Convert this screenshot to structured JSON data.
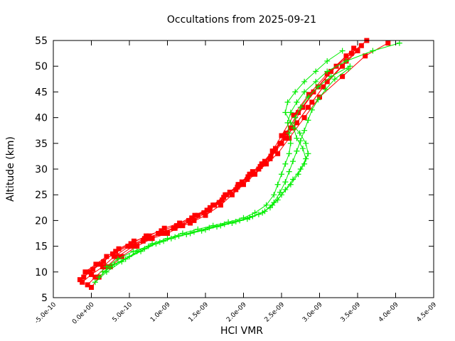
{
  "chart_data": {
    "type": "scatter",
    "title": "Occultations from 2025-09-21",
    "xlabel": "HCl VMR",
    "ylabel": "Altitude (km)",
    "xlim": [
      -5e-10,
      4.5e-09
    ],
    "ylim": [
      5,
      55
    ],
    "xticks": [
      -5e-10,
      0,
      5e-10,
      1e-09,
      1.5e-09,
      2e-09,
      2.5e-09,
      3e-09,
      3.5e-09,
      4e-09,
      4.5e-09
    ],
    "xtick_labels": [
      "-5.0e-10",
      "0.0e+00",
      "5.0e-10",
      "1.0e-09",
      "1.5e-09",
      "2.0e-09",
      "2.5e-09",
      "3.0e-09",
      "3.5e-09",
      "4.0e-09",
      "4.5e-09"
    ],
    "yticks": [
      5,
      10,
      15,
      20,
      25,
      30,
      35,
      40,
      45,
      50,
      55
    ],
    "ytick_labels": [
      "5",
      "10",
      "15",
      "20",
      "25",
      "30",
      "35",
      "40",
      "45",
      "50",
      "55"
    ],
    "grid": false,
    "series": [
      {
        "color": "#ff0000",
        "marker": "square",
        "profiles": [
          {
            "x": [
              -1.2e-10,
              0,
              1.5e-10,
              3e-10,
              5e-10,
              7e-10,
              9e-10,
              1.1e-09,
              1.3e-09,
              1.5e-09,
              1.7e-09,
              1.85e-09,
              2e-09,
              2.15e-09,
              2.3e-09,
              2.45e-09,
              2.6e-09,
              2.8e-09,
              3e-09,
              3.3e-09,
              3.6e-09,
              3.9e-09
            ],
            "y": [
              8,
              9.5,
              11,
              13,
              15,
              16.5,
              17.5,
              18.5,
              19.5,
              21,
              23,
              25,
              27,
              29,
              31,
              33,
              36,
              40,
              44,
              48,
              52,
              54.5
            ]
          },
          {
            "x": [
              -5e-11,
              5e-11,
              2e-10,
              3.5e-10,
              5.5e-10,
              7.5e-10,
              9.5e-10,
              1.15e-09,
              1.35e-09,
              1.55e-09,
              1.72e-09,
              1.9e-09,
              2.05e-09,
              2.2e-09,
              2.35e-09,
              2.5e-09,
              2.65e-09,
              2.85e-09,
              3.05e-09,
              3.3e-09,
              3.5e-09
            ],
            "y": [
              7.5,
              9,
              11,
              13,
              15,
              16.5,
              17.5,
              19,
              20,
              22,
              24,
              26,
              28,
              30,
              32,
              35,
              38,
              42,
              46,
              50,
              53
            ]
          },
          {
            "x": [
              -1e-10,
              2e-11,
              1.6e-10,
              3.2e-10,
              5.2e-10,
              7.2e-10,
              9.2e-10,
              1.12e-09,
              1.32e-09,
              1.52e-09,
              1.68e-09,
              1.82e-09,
              1.98e-09,
              2.12e-09,
              2.28e-09,
              2.42e-09,
              2.56e-09,
              2.72e-09,
              2.92e-09,
              3.15e-09,
              3.42e-09,
              3.62e-09
            ],
            "y": [
              9,
              10.5,
              12,
              14,
              15.5,
              17,
              18,
              19,
              20.5,
              22,
              23.5,
              25.5,
              27.5,
              29.5,
              31.5,
              34,
              37,
              41,
              45,
              49,
              52.5,
              55
            ]
          },
          {
            "x": [
              -1.5e-10,
              -2e-11,
              1.2e-10,
              2.8e-10,
              4.8e-10,
              6.8e-10,
              8.8e-10,
              1.08e-09,
              1.28e-09,
              1.48e-09,
              1.62e-09,
              1.78e-09,
              1.93e-09,
              2.08e-09,
              2.24e-09,
              2.38e-09,
              2.5e-09,
              2.66e-09,
              2.86e-09,
              3.1e-09,
              3.35e-09
            ],
            "y": [
              8.5,
              10,
              11.5,
              13.5,
              15,
              16,
              17.5,
              18.5,
              20,
              21.5,
              23,
              25,
              27,
              29,
              31,
              33.5,
              36.5,
              40.5,
              44.5,
              48.5,
              52
            ]
          },
          {
            "x": [
              0,
              1e-10,
              2.5e-10,
              4e-10,
              6e-10,
              8e-10,
              1e-09,
              1.2e-09,
              1.4e-09,
              1.6e-09,
              1.76e-09,
              1.95e-09,
              2.1e-09,
              2.26e-09,
              2.4e-09,
              2.55e-09,
              2.7e-09,
              2.9e-09,
              3.1e-09,
              3.35e-09,
              3.55e-09
            ],
            "y": [
              7,
              9,
              11,
              13,
              15,
              16.5,
              17.5,
              19,
              21,
              23,
              25,
              27,
              29,
              31,
              33.5,
              36,
              39,
              43,
              47,
              51,
              54
            ]
          },
          {
            "x": [
              -8e-11,
              6e-11,
              2e-10,
              3.6e-10,
              5.6e-10,
              7.6e-10,
              9.6e-10,
              1.16e-09,
              1.36e-09,
              1.56e-09,
              1.74e-09,
              1.92e-09,
              2.06e-09,
              2.22e-09,
              2.36e-09,
              2.48e-09,
              2.62e-09,
              2.78e-09,
              2.98e-09,
              3.22e-09,
              3.45e-09
            ],
            "y": [
              10,
              11.5,
              13,
              14.5,
              16,
              17,
              18.5,
              19.5,
              21,
              22.5,
              24.5,
              26.5,
              28.5,
              30.5,
              32.5,
              35,
              38,
              42,
              46,
              50,
              53.5
            ]
          }
        ]
      },
      {
        "color": "#00ee00",
        "marker": "plus",
        "profiles": [
          {
            "x": [
              5e-11,
              2e-10,
              4e-10,
              6e-10,
              8e-10,
              1e-09,
              1.2e-09,
              1.4e-09,
              1.6e-09,
              1.8e-09,
              2e-09,
              2.15e-09,
              2.3e-09,
              2.4e-09,
              2.45e-09,
              2.5e-09,
              2.55e-09,
              2.6e-09,
              2.62e-09,
              2.6e-09,
              2.58e-09,
              2.62e-09,
              2.7e-09,
              2.8e-09,
              2.95e-09,
              3.1e-09,
              3.35e-09,
              3.7e-09,
              4.05e-09
            ],
            "y": [
              8,
              10,
              12,
              14,
              15.5,
              16.5,
              17.5,
              18.3,
              19,
              19.7,
              20.5,
              21.5,
              23,
              25,
              27,
              29,
              31,
              33,
              35,
              37,
              39,
              41,
              43,
              45,
              47,
              49,
              51,
              53,
              54.5
            ]
          },
          {
            "x": [
              1e-10,
              2.5e-10,
              4.5e-10,
              6.5e-10,
              8.5e-10,
              1.05e-09,
              1.25e-09,
              1.45e-09,
              1.65e-09,
              1.85e-09,
              2.05e-09,
              2.2e-09,
              2.35e-09,
              2.45e-09,
              2.55e-09,
              2.65e-09,
              2.75e-09,
              2.82e-09,
              2.78e-09,
              2.7e-09,
              2.66e-09,
              2.68e-09,
              2.75e-09,
              2.85e-09,
              2.98e-09,
              3.15e-09,
              3.4e-09
            ],
            "y": [
              9,
              11,
              12.5,
              14,
              15.5,
              16.5,
              17.3,
              18,
              18.8,
              19.5,
              20.3,
              21.2,
              22.5,
              24,
              26,
              28,
              30,
              32,
              34,
              36,
              38,
              40,
              42,
              44,
              46,
              48,
              50
            ]
          },
          {
            "x": [
              1.5e-10,
              3e-10,
              5e-10,
              7e-10,
              9e-10,
              1.1e-09,
              1.3e-09,
              1.5e-09,
              1.7e-09,
              1.9e-09,
              2.08e-09,
              2.25e-09,
              2.38e-09,
              2.5e-09,
              2.62e-09,
              2.72e-09,
              2.8e-09,
              2.85e-09,
              2.82e-09,
              2.74e-09,
              2.62e-09,
              2.55e-09,
              2.58e-09,
              2.68e-09,
              2.8e-09,
              2.95e-09,
              3.1e-09,
              3.3e-09
            ],
            "y": [
              10,
              11.5,
              13,
              14.5,
              15.8,
              16.8,
              17.5,
              18.2,
              19,
              19.8,
              20.6,
              21.5,
              23,
              25,
              27,
              29,
              31,
              33,
              35,
              37,
              39,
              41,
              43,
              45,
              47,
              49,
              51,
              53
            ]
          },
          {
            "x": [
              2e-10,
              3.5e-10,
              5.5e-10,
              7.5e-10,
              9.5e-10,
              1.15e-09,
              1.35e-09,
              1.55e-09,
              1.75e-09,
              1.95e-09,
              2.12e-09,
              2.28e-09,
              2.4e-09,
              2.48e-09,
              2.55e-09,
              2.6e-09,
              2.65e-09,
              2.7e-09,
              2.75e-09,
              2.8e-09,
              2.85e-09,
              2.9e-09,
              2.98e-09,
              3.08e-09,
              3.2e-09,
              3.38e-09
            ],
            "y": [
              11,
              12.5,
              14,
              15,
              16,
              17,
              17.8,
              18.6,
              19.3,
              20,
              20.8,
              21.8,
              23.5,
              25.5,
              27.5,
              29.5,
              31.5,
              33.5,
              35.5,
              37.5,
              39.5,
              41.5,
              43.5,
              45.5,
              47.5,
              49.5
            ]
          }
        ]
      }
    ]
  }
}
